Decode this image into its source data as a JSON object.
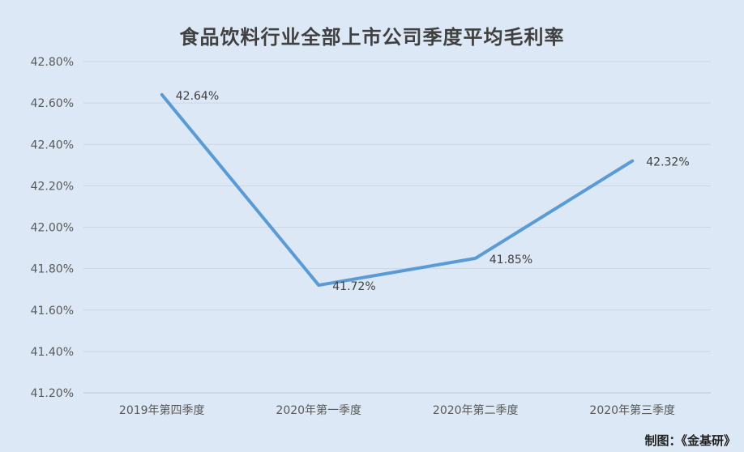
{
  "chart_data": {
    "type": "line",
    "title": "食品饮料行业全部上市公司季度平均毛利率",
    "categories": [
      "2019年第四季度",
      "2020年第一季度",
      "2020年第二季度",
      "2020年第三季度"
    ],
    "series": [
      {
        "values": [
          42.64,
          41.72,
          41.85,
          42.32
        ],
        "color": "#5b9bd5"
      }
    ],
    "data_labels": [
      "42.64%",
      "41.72%",
      "41.85%",
      "42.32%"
    ],
    "ylim": [
      41.2,
      42.8
    ],
    "yticks": [
      41.2,
      41.4,
      41.6,
      41.8,
      42.0,
      42.2,
      42.4,
      42.6,
      42.8
    ],
    "ytick_labels": [
      "41.20%",
      "41.40%",
      "41.60%",
      "41.80%",
      "42.00%",
      "42.20%",
      "42.40%",
      "42.60%",
      "42.80%"
    ],
    "grid": true,
    "legend": "none"
  },
  "footer": {
    "credit": "制图：《金基研》"
  }
}
